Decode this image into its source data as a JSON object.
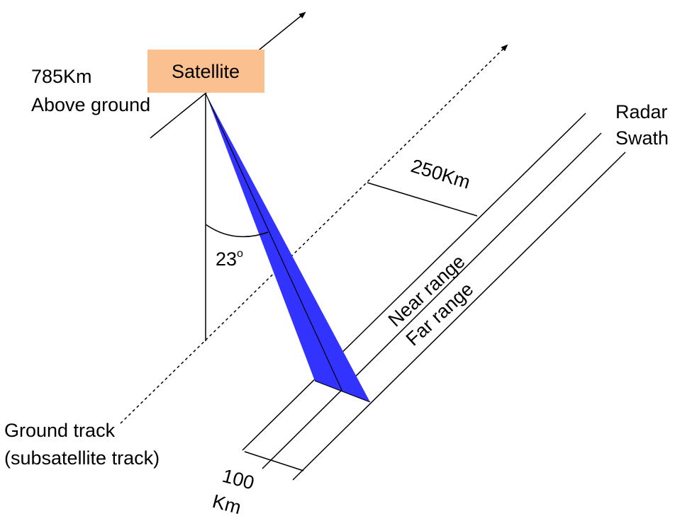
{
  "satellite": {
    "label": "Satellite",
    "box_color": "#FAC090"
  },
  "altitude": {
    "line1": "785Km",
    "line2": "Above ground"
  },
  "swath_label": {
    "line1": "Radar",
    "line2": "Swath"
  },
  "swath_offset": "250Km",
  "angle": {
    "value": "23",
    "unit": "o"
  },
  "near_range": "Near range",
  "far_range": "Far range",
  "ground_track": {
    "line1": "Ground track",
    "line2": "(subsatellite track)"
  },
  "swath_width": {
    "line1": "100",
    "line2": "Km"
  },
  "colors": {
    "beam": "#3333FF",
    "line": "#000000"
  }
}
